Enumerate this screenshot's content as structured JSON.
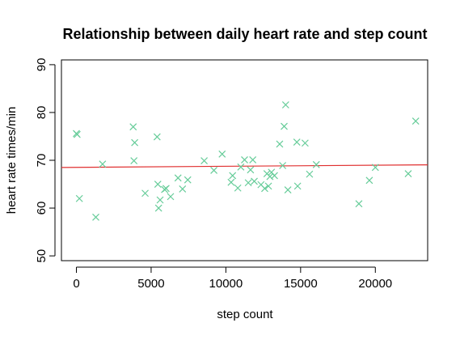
{
  "chart_data": {
    "type": "scatter",
    "title": "Relationship between daily heart rate and step count",
    "xlabel": "step count",
    "ylabel": "heart rate times/min",
    "xlim": [
      -1000,
      23500
    ],
    "ylim": [
      49,
      91
    ],
    "x_ticks": [
      0,
      5000,
      10000,
      15000,
      20000
    ],
    "y_ticks": [
      50,
      60,
      70,
      80,
      90
    ],
    "grid": false,
    "legend": "none",
    "marker": "x",
    "point_color": "#66CC99",
    "line_color": "#E03030",
    "points": [
      {
        "x": 0,
        "y": 75.6
      },
      {
        "x": 50,
        "y": 75.4
      },
      {
        "x": 200,
        "y": 62.0
      },
      {
        "x": 1300,
        "y": 58.1
      },
      {
        "x": 1750,
        "y": 69.2
      },
      {
        "x": 3800,
        "y": 77.0
      },
      {
        "x": 3850,
        "y": 69.9
      },
      {
        "x": 3900,
        "y": 73.7
      },
      {
        "x": 4600,
        "y": 63.1
      },
      {
        "x": 5400,
        "y": 74.9
      },
      {
        "x": 5450,
        "y": 65.0
      },
      {
        "x": 5500,
        "y": 60.0
      },
      {
        "x": 5600,
        "y": 61.7
      },
      {
        "x": 5900,
        "y": 63.9
      },
      {
        "x": 6000,
        "y": 64.1
      },
      {
        "x": 6300,
        "y": 62.4
      },
      {
        "x": 6800,
        "y": 66.3
      },
      {
        "x": 7100,
        "y": 64.0
      },
      {
        "x": 7450,
        "y": 65.9
      },
      {
        "x": 8550,
        "y": 69.9
      },
      {
        "x": 9200,
        "y": 67.9
      },
      {
        "x": 9750,
        "y": 71.3
      },
      {
        "x": 10350,
        "y": 65.4
      },
      {
        "x": 10450,
        "y": 66.8
      },
      {
        "x": 10800,
        "y": 64.2
      },
      {
        "x": 11000,
        "y": 68.6
      },
      {
        "x": 11250,
        "y": 70.1
      },
      {
        "x": 11500,
        "y": 65.3
      },
      {
        "x": 11650,
        "y": 68.0
      },
      {
        "x": 11800,
        "y": 70.1
      },
      {
        "x": 11900,
        "y": 65.6
      },
      {
        "x": 12350,
        "y": 64.9
      },
      {
        "x": 12600,
        "y": 64.1
      },
      {
        "x": 12750,
        "y": 67.2
      },
      {
        "x": 12850,
        "y": 64.6
      },
      {
        "x": 12950,
        "y": 66.6
      },
      {
        "x": 13050,
        "y": 67.5
      },
      {
        "x": 13250,
        "y": 66.8
      },
      {
        "x": 13600,
        "y": 73.4
      },
      {
        "x": 13800,
        "y": 68.9
      },
      {
        "x": 13900,
        "y": 77.1
      },
      {
        "x": 14000,
        "y": 81.6
      },
      {
        "x": 14150,
        "y": 63.8
      },
      {
        "x": 14750,
        "y": 73.8
      },
      {
        "x": 14800,
        "y": 64.6
      },
      {
        "x": 15300,
        "y": 73.6
      },
      {
        "x": 15600,
        "y": 67.1
      },
      {
        "x": 16050,
        "y": 69.1
      },
      {
        "x": 18900,
        "y": 60.9
      },
      {
        "x": 19600,
        "y": 65.8
      },
      {
        "x": 20000,
        "y": 68.5
      },
      {
        "x": 22200,
        "y": 67.2
      },
      {
        "x": 22700,
        "y": 78.2
      }
    ],
    "trend_line": {
      "x": [
        -1000,
        23500
      ],
      "y": [
        68.5,
        69.05
      ]
    }
  }
}
